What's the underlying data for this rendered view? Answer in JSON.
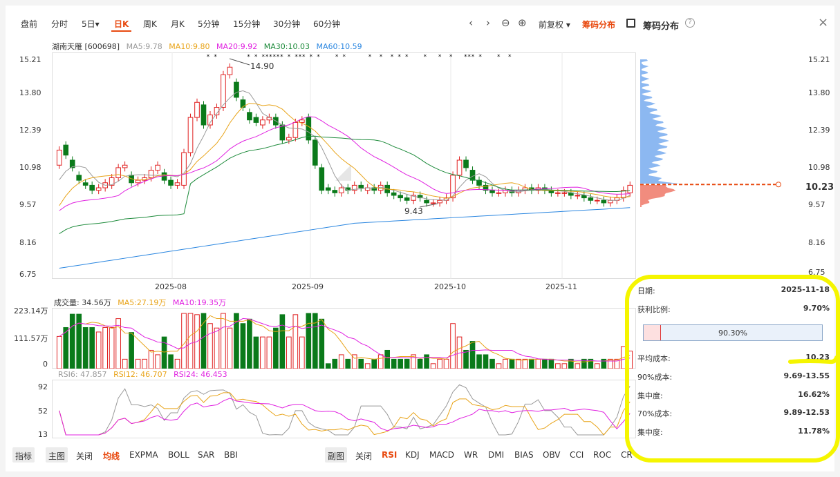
{
  "period_tabs": [
    "盘前",
    "分时",
    "5日▾",
    "日K",
    "周K",
    "月K",
    "5分钟",
    "15分钟",
    "30分钟",
    "60分钟"
  ],
  "active_tab": "日K",
  "toolbar": {
    "prev_icon": "‹",
    "next_icon": "›",
    "zoom_out_icon": "⊖",
    "zoom_in_icon": "⊕",
    "adjust_label": "前复权 ▾",
    "chip_dist_toggle": "筹码分布",
    "chip_dist_title": "筹码分布",
    "help_icon": "?",
    "close_icon": "×"
  },
  "ma_legend": {
    "stock": "湖南天雁 [600698]",
    "ma5": "MA5:9.78",
    "ma10": "MA10:9.80",
    "ma20": "MA20:9.92",
    "ma30": "MA30:10.03",
    "ma60": "MA60:10.59"
  },
  "colors": {
    "up": "#e02020",
    "down": "#0a7a1a",
    "ma5": "#999999",
    "ma10": "#e8a317",
    "ma20": "#e020e0",
    "ma30": "#1c8a3a",
    "ma60": "#2a86e0",
    "accent": "#e8490f",
    "chip_profit": "#f08070",
    "chip_loss": "#80b0f0"
  },
  "price_axis": [
    "15.21",
    "13.80",
    "12.39",
    "10.98",
    "9.57",
    "8.16",
    "6.75"
  ],
  "date_axis": [
    "2025-08",
    "2025-09",
    "2025-10",
    "2025-11"
  ],
  "price_annotations": {
    "high": "14.90",
    "low": "9.43"
  },
  "chip_axis": [
    "15.21",
    "13.80",
    "12.39",
    "10.98",
    "9.57",
    "8.16",
    "6.75"
  ],
  "chip_avg_price": "10.23",
  "volume": {
    "title": "成交量: 34.56万",
    "ma5": "MA5:27.19万",
    "ma10": "MA10:19.35万",
    "axis": [
      "223.14万",
      "111.57万",
      "0"
    ]
  },
  "rsi": {
    "rsi6": "RSI6: 47.857",
    "rsi12": "RSI12: 46.707",
    "rsi24": "RSI24: 46.453",
    "axis": [
      "92",
      "52",
      "13"
    ]
  },
  "chip_info": {
    "date_label": "日期:",
    "date": "2025-11-18",
    "profit_label": "获利比例:",
    "profit": "9.70%",
    "bar_text": "90.30%",
    "bar_fraction": 0.097,
    "avg_cost_label": "平均成本:",
    "avg_cost": "10.23",
    "c90_label": "90%成本:",
    "c90": "9.69-13.55",
    "conc90_label": "集中度:",
    "conc90": "16.62%",
    "c70_label": "70%成本:",
    "c70": "9.89-12.53",
    "conc70_label": "集中度:",
    "conc70": "11.78%"
  },
  "bottom_left": [
    "指标",
    "主图",
    "关闭",
    "均线",
    "EXPMA",
    "BOLL",
    "SAR",
    "BBI"
  ],
  "bottom_right": [
    "副图",
    "关闭",
    "RSI",
    "KDJ",
    "MACD",
    "WR",
    "DMI",
    "BIAS",
    "OBV",
    "CCI",
    "ROC",
    "CR"
  ],
  "chart_data": {
    "type": "candlestick",
    "ylim": [
      6.75,
      15.21
    ],
    "close": [
      11.6,
      11.4,
      10.9,
      10.4,
      10.2,
      10.0,
      10.1,
      10.3,
      10.5,
      10.9,
      11.0,
      10.3,
      10.4,
      10.5,
      10.8,
      11.0,
      10.4,
      10.2,
      10.3,
      11.5,
      12.9,
      13.5,
      12.6,
      13.0,
      13.3,
      14.6,
      14.9,
      13.7,
      13.3,
      12.8,
      12.7,
      12.8,
      12.9,
      12.6,
      12.0,
      12.1,
      12.7,
      12.8,
      12.0,
      11.0,
      10.0,
      10.0,
      9.9,
      10.1,
      10.0,
      10.2,
      10.1,
      10.1,
      10.0,
      10.2,
      9.9,
      9.8,
      9.7,
      9.6,
      9.8,
      9.7,
      9.5,
      9.5,
      9.6,
      9.7,
      10.6,
      11.2,
      10.9,
      10.4,
      10.2,
      10.0,
      9.9,
      9.9,
      10.0,
      9.9,
      10.0,
      10.1,
      10.0,
      10.1,
      10.0,
      9.9,
      9.9,
      9.9,
      9.8,
      9.8,
      9.7,
      9.6,
      9.6,
      9.5,
      9.6,
      9.7,
      10.0,
      10.2
    ],
    "open": [
      11.0,
      11.8,
      11.2,
      10.6,
      10.3,
      10.2,
      10.0,
      10.1,
      10.2,
      10.5,
      10.9,
      10.6,
      10.3,
      10.4,
      10.5,
      10.8,
      10.7,
      10.4,
      10.2,
      10.2,
      11.5,
      12.9,
      13.4,
      12.6,
      13.0,
      13.3,
      14.6,
      14.3,
      13.6,
      13.1,
      12.9,
      12.6,
      12.8,
      12.9,
      12.6,
      12.0,
      12.1,
      12.7,
      12.9,
      12.0,
      10.9,
      10.1,
      10.0,
      9.9,
      10.1,
      10.0,
      10.2,
      10.0,
      10.1,
      10.0,
      10.2,
      9.9,
      9.8,
      9.7,
      9.6,
      9.8,
      9.6,
      9.5,
      9.5,
      9.6,
      9.7,
      10.6,
      11.2,
      10.8,
      10.4,
      10.2,
      10.0,
      9.9,
      9.9,
      10.0,
      9.9,
      10.0,
      10.1,
      10.0,
      10.1,
      10.0,
      9.9,
      9.9,
      9.9,
      9.8,
      9.8,
      9.7,
      9.6,
      9.6,
      9.5,
      9.6,
      9.7,
      9.9
    ],
    "volume_ylim": [
      0,
      223.14
    ],
    "rsi_ylim": [
      13,
      92
    ]
  }
}
